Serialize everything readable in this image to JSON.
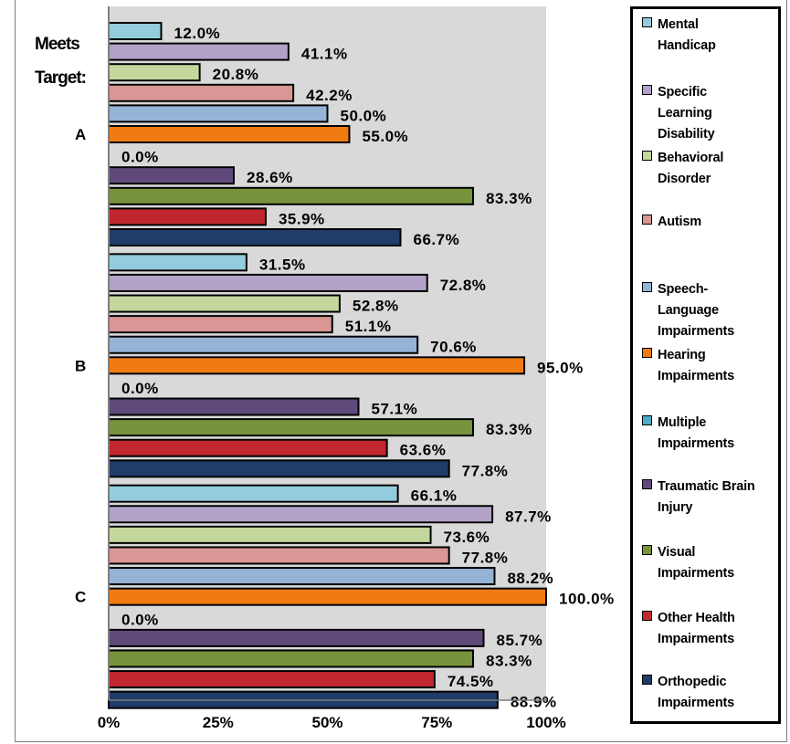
{
  "chart_data": {
    "type": "bar",
    "orientation": "horizontal",
    "title": "",
    "annotation": [
      "Meets",
      "Target:"
    ],
    "categories": [
      "A",
      "B",
      "C"
    ],
    "xlim": [
      0,
      100
    ],
    "x_ticks": [
      "0%",
      "25%",
      "50%",
      "75%",
      "100%"
    ],
    "grid": false,
    "plot_background": "#d9d9d9",
    "legend_position": "right",
    "series": [
      {
        "name": "Mental Handicap",
        "color": "#93cddd",
        "values": [
          12.0,
          31.5,
          66.1
        ],
        "labels": [
          "12.0%",
          "31.5%",
          "66.1%"
        ]
      },
      {
        "name": "Specific Learning Disability",
        "color": "#b3a2c7",
        "values": [
          41.1,
          72.8,
          87.7
        ],
        "labels": [
          "41.1%",
          "72.8%",
          "87.7%"
        ]
      },
      {
        "name": "Behavioral Disorder",
        "color": "#c3d69b",
        "values": [
          20.8,
          52.8,
          73.6
        ],
        "labels": [
          "20.8%",
          "52.8%",
          "73.6%"
        ]
      },
      {
        "name": "Autism",
        "color": "#d99694",
        "values": [
          42.2,
          51.1,
          77.8
        ],
        "labels": [
          "42.2%",
          "51.1%",
          "77.8%"
        ]
      },
      {
        "name": "Speech-Language Impairments",
        "color": "#95b3d7",
        "values": [
          50.0,
          70.6,
          88.2
        ],
        "labels": [
          "50.0%",
          "70.6%",
          "88.2%"
        ]
      },
      {
        "name": "Hearing Impairments",
        "color": "#f07b12",
        "values": [
          55.0,
          95.0,
          100.0
        ],
        "labels": [
          "55.0%",
          "95.0%",
          "100.0%"
        ]
      },
      {
        "name": "Multiple Impairments",
        "color": "#4bacc6",
        "values": [
          0.0,
          0.0,
          0.0
        ],
        "labels": [
          "0.0%",
          "0.0%",
          "0.0%"
        ]
      },
      {
        "name": "Traumatic Brain Injury",
        "color": "#604a7b",
        "values": [
          28.6,
          57.1,
          85.7
        ],
        "labels": [
          "28.6%",
          "57.1%",
          "85.7%"
        ]
      },
      {
        "name": "Visual Impairments",
        "color": "#77933c",
        "values": [
          83.3,
          83.3,
          83.3
        ],
        "labels": [
          "83.3%",
          "83.3%",
          "83.3%"
        ]
      },
      {
        "name": "Other Health Impairments",
        "color": "#c0282d",
        "values": [
          35.9,
          63.6,
          74.5
        ],
        "labels": [
          "35.9%",
          "63.6%",
          "74.5%"
        ]
      },
      {
        "name": "Orthopedic Impairments",
        "color": "#1f3d66",
        "values": [
          66.7,
          77.8,
          88.9
        ],
        "labels": [
          "66.7%",
          "77.8%",
          "88.9%"
        ]
      }
    ]
  },
  "legend": {
    "items": [
      {
        "lines": [
          "Mental",
          "Handicap"
        ],
        "color": "#93cddd"
      },
      {
        "lines": [
          "Specific",
          "Learning",
          "Disability"
        ],
        "color": "#b3a2c7"
      },
      {
        "lines": [
          "Behavioral",
          "Disorder"
        ],
        "color": "#c3d69b"
      },
      {
        "lines": [
          "Autism"
        ],
        "color": "#d99694"
      },
      {
        "lines": [
          "Speech-",
          "Language",
          "Impairments"
        ],
        "color": "#95b3d7"
      },
      {
        "lines": [
          "Hearing",
          "Impairments"
        ],
        "color": "#f07b12"
      },
      {
        "lines": [
          "Multiple",
          "Impairments"
        ],
        "color": "#4bacc6"
      },
      {
        "lines": [
          "Traumatic Brain",
          "Injury"
        ],
        "color": "#604a7b"
      },
      {
        "lines": [
          "Visual",
          "Impairments"
        ],
        "color": "#77933c"
      },
      {
        "lines": [
          "Other Health",
          "Impairments"
        ],
        "color": "#c0282d"
      },
      {
        "lines": [
          "Orthopedic",
          "Impairments"
        ],
        "color": "#1f3d66"
      }
    ]
  }
}
